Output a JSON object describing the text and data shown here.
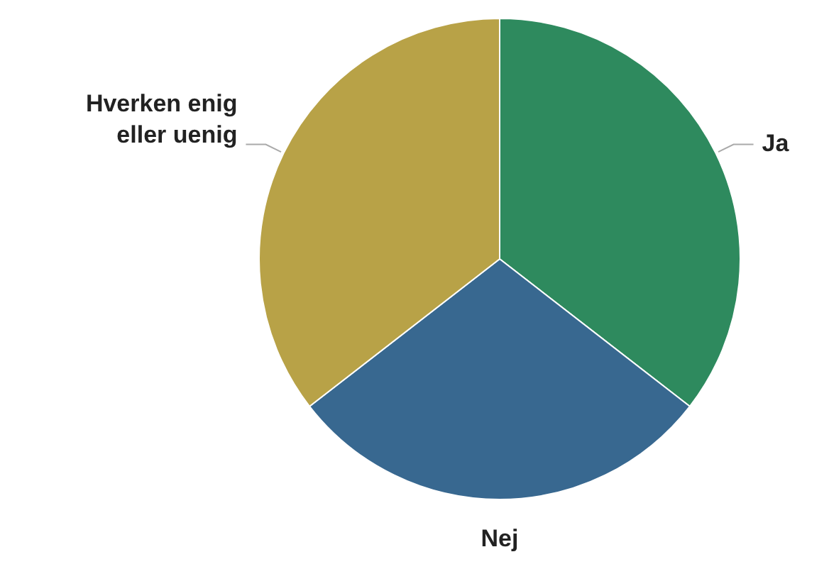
{
  "chart_data": {
    "type": "pie",
    "categories": [
      "Ja",
      "Nej",
      "Hverken enig eller uenig"
    ],
    "values": [
      35.5,
      29,
      35.5
    ],
    "colors": [
      "#2e8a5e",
      "#386890",
      "#b8a247"
    ]
  }
}
